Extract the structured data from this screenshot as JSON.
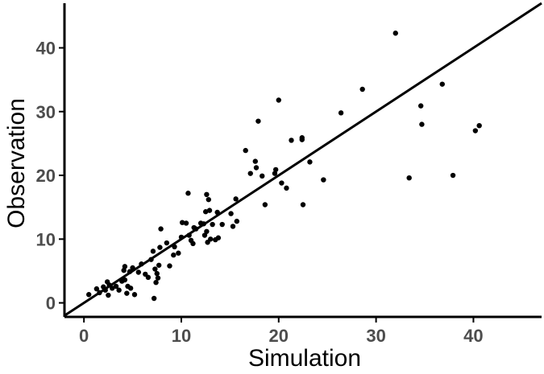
{
  "chart_data": {
    "type": "scatter",
    "title": "",
    "xlabel": "Simulation",
    "ylabel": "Observation",
    "xlim": [
      -2,
      47
    ],
    "ylim": [
      -2.2,
      47
    ],
    "x_ticks": [
      0,
      10,
      20,
      30,
      40
    ],
    "y_ticks": [
      0,
      10,
      20,
      30,
      40
    ],
    "grid": false,
    "reference_line": {
      "type": "identity",
      "x": [
        -2,
        47
      ],
      "y": [
        -2,
        47
      ]
    },
    "colors": {
      "points": "#000000",
      "line": "#000000",
      "axis": "#000000",
      "tick_labels": "#4d4d4d"
    },
    "series": [
      {
        "points": [
          [
            0.5,
            1.3
          ],
          [
            1.3,
            2.2
          ],
          [
            1.6,
            1.6
          ],
          [
            2.0,
            2.5
          ],
          [
            2.2,
            2.0
          ],
          [
            2.4,
            3.3
          ],
          [
            2.5,
            1.2
          ],
          [
            2.6,
            2.8
          ],
          [
            2.9,
            2.3
          ],
          [
            3.3,
            2.6
          ],
          [
            3.6,
            2.0
          ],
          [
            3.9,
            3.4
          ],
          [
            4.1,
            5.1
          ],
          [
            4.2,
            5.7
          ],
          [
            4.2,
            3.6
          ],
          [
            4.4,
            1.5
          ],
          [
            4.5,
            2.6
          ],
          [
            4.7,
            4.9
          ],
          [
            4.8,
            2.3
          ],
          [
            5.0,
            5.5
          ],
          [
            5.2,
            1.3
          ],
          [
            5.6,
            4.8
          ],
          [
            5.9,
            6.1
          ],
          [
            6.3,
            4.5
          ],
          [
            6.6,
            4.0
          ],
          [
            6.9,
            6.8
          ],
          [
            7.1,
            8.1
          ],
          [
            7.2,
            0.7
          ],
          [
            7.3,
            5.3
          ],
          [
            7.4,
            3.2
          ],
          [
            7.5,
            4.6
          ],
          [
            7.6,
            3.9
          ],
          [
            7.7,
            5.9
          ],
          [
            7.8,
            8.7
          ],
          [
            7.9,
            11.6
          ],
          [
            8.5,
            9.4
          ],
          [
            8.8,
            5.8
          ],
          [
            9.2,
            7.5
          ],
          [
            9.3,
            8.8
          ],
          [
            9.7,
            7.8
          ],
          [
            10.0,
            10.3
          ],
          [
            10.1,
            12.6
          ],
          [
            10.5,
            12.5
          ],
          [
            10.7,
            17.2
          ],
          [
            10.8,
            10.6
          ],
          [
            11.0,
            9.8
          ],
          [
            11.2,
            9.3
          ],
          [
            11.3,
            11.8
          ],
          [
            11.5,
            11.6
          ],
          [
            12.0,
            12.5
          ],
          [
            12.3,
            12.4
          ],
          [
            12.4,
            10.6
          ],
          [
            12.5,
            14.3
          ],
          [
            12.6,
            17.0
          ],
          [
            12.6,
            11.2
          ],
          [
            12.7,
            9.5
          ],
          [
            12.8,
            16.2
          ],
          [
            12.9,
            14.5
          ],
          [
            13.0,
            10.0
          ],
          [
            13.2,
            12.3
          ],
          [
            13.5,
            9.9
          ],
          [
            13.7,
            14.2
          ],
          [
            13.8,
            10.2
          ],
          [
            14.2,
            12.3
          ],
          [
            15.1,
            14.0
          ],
          [
            15.3,
            12.0
          ],
          [
            15.6,
            16.3
          ],
          [
            15.7,
            12.8
          ],
          [
            16.6,
            23.9
          ],
          [
            17.1,
            20.3
          ],
          [
            17.6,
            22.2
          ],
          [
            17.7,
            21.2
          ],
          [
            17.9,
            28.5
          ],
          [
            18.3,
            19.9
          ],
          [
            18.6,
            15.4
          ],
          [
            19.6,
            20.3
          ],
          [
            19.7,
            20.9
          ],
          [
            20.0,
            31.8
          ],
          [
            20.3,
            18.8
          ],
          [
            20.8,
            18.0
          ],
          [
            21.3,
            25.5
          ],
          [
            22.4,
            25.6
          ],
          [
            22.4,
            25.9
          ],
          [
            22.5,
            15.4
          ],
          [
            23.2,
            22.1
          ],
          [
            24.6,
            19.3
          ],
          [
            26.4,
            29.8
          ],
          [
            28.6,
            33.5
          ],
          [
            32.0,
            42.3
          ],
          [
            33.4,
            19.6
          ],
          [
            34.6,
            30.9
          ],
          [
            34.7,
            28.0
          ],
          [
            36.8,
            34.3
          ],
          [
            37.9,
            20.0
          ],
          [
            40.2,
            27.0
          ],
          [
            40.6,
            27.8
          ]
        ]
      }
    ]
  }
}
